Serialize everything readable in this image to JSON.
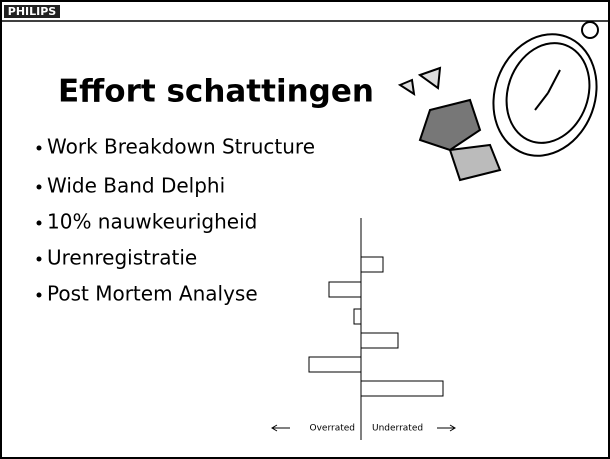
{
  "header": {
    "logo": "PHILIPS"
  },
  "title": "Effort schattingen",
  "bullets": [
    "Work Breakdown Structure",
    "Wide Band Delphi",
    "10% nauwkeurigheid",
    "Urenregistratie",
    "Post Mortem Analyse"
  ],
  "chart_data": {
    "type": "bar",
    "orientation": "horizontal",
    "values": [
      22,
      -32,
      -7,
      37,
      -52,
      82
    ],
    "xlim": [
      -60,
      90
    ],
    "left_label": "Overrated",
    "right_label": "Underrated",
    "color": "#ffffff",
    "edge_color": "#000000"
  }
}
